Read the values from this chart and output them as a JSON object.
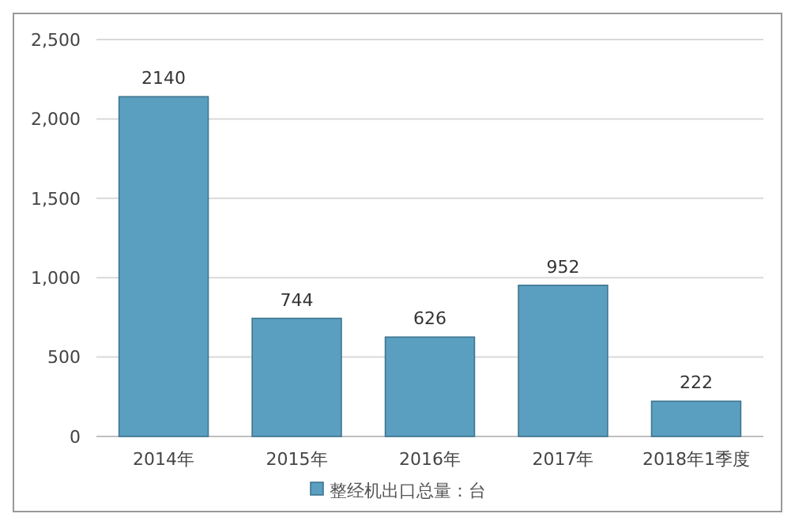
{
  "chart_data": {
    "type": "bar",
    "categories": [
      "2014年",
      "2015年",
      "2016年",
      "2017年",
      "2018年1季度"
    ],
    "series": [
      {
        "name": "整经机出口总量：台",
        "color": "#5b9fc0",
        "values": [
          2140,
          744,
          626,
          952,
          222
        ]
      }
    ],
    "ylim": [
      0,
      2500
    ],
    "yticks": [
      0,
      {
        "value": 500,
        "label": "500"
      },
      {
        "value": 1000,
        "label": "1,000"
      },
      {
        "value": 1500,
        "label": "1,500"
      },
      {
        "value": 2000,
        "label": "2,000"
      },
      {
        "value": 2500,
        "label": "2,500"
      }
    ],
    "grid": "y",
    "legend": "bottom",
    "data_labels": true
  }
}
